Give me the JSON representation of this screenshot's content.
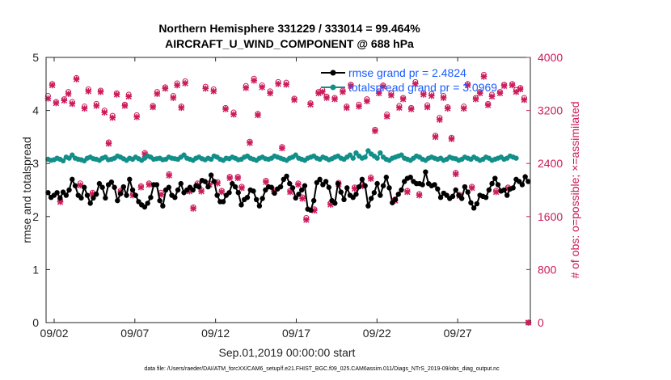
{
  "chart_data": {
    "type": "line",
    "title": "Northern Hemisphere 331229 / 333014 = 99.464%",
    "subtitle": "AIRCRAFT_U_WIND_COMPONENT @ 688 hPa",
    "xlabel": "Sep.01,2019 00:00:00 start",
    "ylabel": "rmse and totalspread",
    "ylabel_right": "# of obs: o=possible; ×=assimilated",
    "xlim": [
      1.5,
      31.5
    ],
    "ylim": [
      0,
      5
    ],
    "ylim_right": [
      0,
      4000
    ],
    "x_ticks": [
      2,
      7,
      12,
      17,
      22,
      27
    ],
    "x_tick_labels": [
      "09/02",
      "09/07",
      "09/12",
      "09/17",
      "09/22",
      "09/27"
    ],
    "y_ticks": [
      "0",
      "1",
      "2",
      "3",
      "4",
      "5"
    ],
    "y_ticks_right": [
      "0",
      "800",
      "1600",
      "2400",
      "3200",
      "4000"
    ],
    "legend": [
      "rmse grand pr = 2.4824",
      "totalspread grand pr = 3.0969"
    ],
    "series": [
      {
        "name": "rmse",
        "color": "#000000",
        "values": [
          2.45,
          2.36,
          2.4,
          2.45,
          2.35,
          2.46,
          2.4,
          2.5,
          2.7,
          2.58,
          2.4,
          2.35,
          2.55,
          2.4,
          2.25,
          2.35,
          2.42,
          2.62,
          2.55,
          2.35,
          2.6,
          2.65,
          2.55,
          2.3,
          2.43,
          2.56,
          2.4,
          2.7,
          2.5,
          2.4,
          2.28,
          2.22,
          2.18,
          2.25,
          2.36,
          2.6,
          2.6,
          2.3,
          2.2,
          2.5,
          2.55,
          2.4,
          2.36,
          2.5,
          2.62,
          2.45,
          2.5,
          2.55,
          2.5,
          2.58,
          2.56,
          2.68,
          2.66,
          2.56,
          2.78,
          2.66,
          2.4,
          2.28,
          2.28,
          2.4,
          2.45,
          2.62,
          2.56,
          2.45,
          2.22,
          2.32,
          2.36,
          2.5,
          2.48,
          2.32,
          2.2,
          2.34,
          2.5,
          2.56,
          2.55,
          2.44,
          2.52,
          2.56,
          2.7,
          2.76,
          2.62,
          2.54,
          2.35,
          2.42,
          2.5,
          2.58,
          2.14,
          2.12,
          2.3,
          2.64,
          2.7,
          2.6,
          2.66,
          2.55,
          2.3,
          2.25,
          2.62,
          2.46,
          2.32,
          2.54,
          2.4,
          2.36,
          2.42,
          2.56,
          2.7,
          2.58,
          2.2,
          2.34,
          2.45,
          2.62,
          2.4,
          2.58,
          2.74,
          2.54,
          2.26,
          2.32,
          2.42,
          2.5,
          2.66,
          2.72,
          2.74,
          2.66,
          2.62,
          2.62,
          2.6,
          2.84,
          2.62,
          2.58,
          2.6,
          2.52,
          2.36,
          2.44,
          2.4,
          2.34,
          2.38,
          2.5,
          2.4,
          2.34,
          2.56,
          2.46,
          2.26,
          2.16,
          2.24,
          2.4,
          2.38,
          2.36,
          2.5,
          2.62,
          2.72,
          2.6,
          2.48,
          2.5,
          2.4,
          2.52,
          2.54,
          2.7,
          2.66,
          2.6,
          2.75,
          2.66
        ]
      },
      {
        "name": "totalspread",
        "color": "#138f8a",
        "values": [
          3.08,
          3.06,
          3.07,
          3.1,
          3.08,
          3.05,
          3.12,
          3.1,
          3.16,
          3.1,
          3.08,
          3.07,
          3.05,
          3.1,
          3.12,
          3.09,
          3.08,
          3.06,
          3.1,
          3.12,
          3.07,
          3.08,
          3.1,
          3.14,
          3.12,
          3.09,
          3.06,
          3.1,
          3.08,
          3.12,
          3.09,
          3.06,
          3.1,
          3.14,
          3.12,
          3.08,
          3.09,
          3.1,
          3.07,
          3.08,
          3.12,
          3.1,
          3.09,
          3.08,
          3.12,
          3.16,
          3.1,
          3.08,
          3.06,
          3.1,
          3.12,
          3.09,
          3.07,
          3.1,
          3.08,
          3.14,
          3.12,
          3.08,
          3.06,
          3.1,
          3.09,
          3.12,
          3.1,
          3.07,
          3.08,
          3.12,
          3.14,
          3.1,
          3.08,
          3.06,
          3.1,
          3.12,
          3.09,
          3.08,
          3.1,
          3.14,
          3.12,
          3.1,
          3.08,
          3.06,
          3.1,
          3.12,
          3.16,
          3.1,
          3.08,
          3.06,
          3.1,
          3.12,
          3.14,
          3.1,
          3.08,
          3.12,
          3.1,
          3.07,
          3.09,
          3.12,
          3.14,
          3.1,
          3.08,
          3.12,
          3.16,
          3.1,
          3.2,
          3.14,
          3.1,
          3.12,
          3.24,
          3.18,
          3.14,
          3.1,
          3.2,
          3.12,
          3.08,
          3.06,
          3.1,
          3.12,
          3.14,
          3.16,
          3.1,
          3.08,
          3.06,
          3.1,
          3.14,
          3.12,
          3.08,
          3.06,
          3.1,
          3.12,
          3.1,
          3.08,
          3.1,
          3.06,
          3.08,
          3.12,
          3.1,
          3.09,
          3.06,
          3.08,
          3.12,
          3.1,
          3.08,
          3.12,
          3.09,
          3.06,
          3.08,
          3.12,
          3.1,
          3.06,
          3.08,
          3.1,
          3.12,
          3.08,
          3.1,
          3.14,
          3.12,
          3.1
        ]
      },
      {
        "name": "obs_possible",
        "color": "#cc1a5a",
        "marker": "o",
        "x": [
          1.62,
          1.88,
          2.12,
          2.38,
          2.62,
          2.88,
          3.12,
          3.38,
          3.62,
          3.88,
          4.12,
          4.38,
          4.62,
          4.88,
          5.12,
          5.38,
          5.62,
          5.88,
          6.12,
          6.38,
          6.62,
          6.88,
          7.12,
          7.38,
          7.62,
          7.88,
          8.12,
          8.38,
          8.62,
          8.88,
          9.12,
          9.38,
          9.62,
          9.88,
          10.12,
          10.38,
          10.62,
          10.88,
          11.12,
          11.38,
          11.62,
          11.88,
          12.12,
          12.38,
          12.62,
          12.88,
          13.12,
          13.38,
          13.62,
          13.88,
          14.12,
          14.38,
          14.62,
          14.88,
          15.12,
          15.38,
          15.62,
          15.88,
          16.12,
          16.38,
          16.62,
          16.88,
          17.12,
          17.38,
          17.62,
          17.88,
          18.12,
          18.38,
          18.62,
          18.88,
          19.12,
          19.38,
          19.62,
          19.88,
          20.12,
          20.38,
          20.62,
          20.88,
          21.12,
          21.38,
          21.62,
          21.88,
          22.12,
          22.38,
          22.62,
          22.88,
          23.12,
          23.38,
          23.62,
          23.88,
          24.12,
          24.38,
          24.62,
          24.88,
          25.12,
          25.38,
          25.62,
          25.88,
          26.12,
          26.38,
          26.62,
          26.88,
          27.12,
          27.38,
          27.62,
          27.88,
          28.12,
          28.38,
          28.62,
          28.88,
          29.12,
          29.38,
          29.62,
          29.88,
          30.12,
          30.38,
          30.62,
          30.88,
          31.12,
          31.38
        ],
        "values": [
          3420,
          3600,
          3330,
          1840,
          3370,
          3480,
          3330,
          3690,
          2100,
          3260,
          3520,
          1960,
          3300,
          3500,
          3200,
          2720,
          3120,
          3460,
          1990,
          3290,
          3440,
          1940,
          3130,
          2060,
          2560,
          2100,
          3270,
          3480,
          1960,
          3550,
          2240,
          3420,
          3610,
          3260,
          3640,
          2000,
          1740,
          2100,
          2000,
          3560,
          2100,
          3520,
          2120,
          1990,
          3240,
          2200,
          3170,
          2200,
          2050,
          3570,
          2730,
          3680,
          3150,
          3580,
          2140,
          3490,
          2000,
          3630,
          2650,
          3620,
          1990,
          3380,
          2100,
          1890,
          1580,
          3310,
          1710,
          3480,
          3510,
          3410,
          1800,
          3390,
          2110,
          3500,
          3260,
          3590,
          2040,
          3290,
          2080,
          3370,
          2190,
          2910,
          3490,
          3580,
          3140,
          3460,
          1860,
          3270,
          3390,
          1990,
          3240,
          3630,
          1940,
          3460,
          3280,
          3450,
          2820,
          3090,
          3420,
          3250,
          2790,
          2260,
          1930,
          3260,
          3600,
          2050,
          3390,
          3480,
          3740,
          3300,
          3440,
          1990,
          3480,
          3590,
          2040,
          3600,
          3510,
          3540,
          3390,
          0
        ]
      },
      {
        "name": "obs_assimilated",
        "color": "#cc1a5a",
        "marker": "x",
        "values": [
          3380,
          3580,
          3310,
          1820,
          3350,
          3450,
          3300,
          3670,
          2070,
          3230,
          3490,
          1940,
          3270,
          3480,
          3170,
          2700,
          3090,
          3440,
          1970,
          3270,
          3410,
          1920,
          3100,
          2040,
          2540,
          2080,
          3250,
          3450,
          1930,
          3530,
          2220,
          3390,
          3580,
          3240,
          3610,
          1980,
          1720,
          2080,
          1980,
          3530,
          2080,
          3490,
          2100,
          1970,
          3220,
          2180,
          3140,
          2180,
          2030,
          3540,
          2710,
          3650,
          3130,
          3550,
          2120,
          3460,
          1980,
          3600,
          2630,
          3590,
          1970,
          3360,
          2080,
          1870,
          1550,
          3290,
          1690,
          3460,
          3480,
          3390,
          1780,
          3370,
          2090,
          3480,
          3240,
          3570,
          2020,
          3260,
          2060,
          3340,
          2170,
          2890,
          3460,
          3560,
          3110,
          3430,
          1840,
          3240,
          3370,
          1970,
          3220,
          3600,
          1920,
          3440,
          3250,
          3420,
          2800,
          3060,
          3390,
          3230,
          2770,
          2240,
          1910,
          3230,
          3580,
          2030,
          3370,
          3460,
          3710,
          3280,
          3410,
          1970,
          3460,
          3570,
          2020,
          3580,
          3480,
          3520,
          3360,
          0
        ]
      }
    ]
  },
  "footer": "data file: /Users/raeder/DAI/ATM_forcXX/CAM6_setup/f.e21.FHIST_BGC.f09_025.CAM6assim.011/Diags_NTrS_2019-09/obs_diag_output.nc"
}
